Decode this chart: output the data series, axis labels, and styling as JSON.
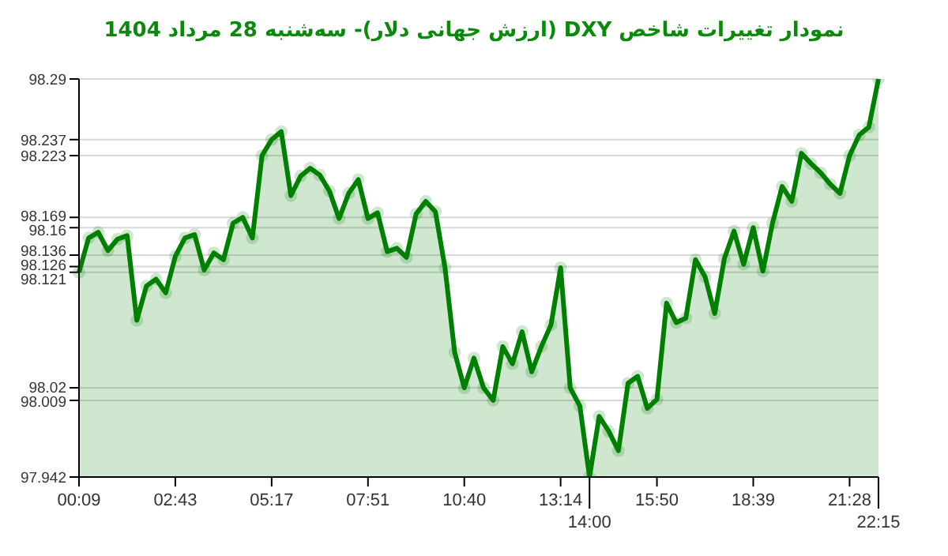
{
  "chart_data": {
    "type": "area",
    "title": "نمودار تغییرات شاخص DXY (ارزش جهانی دلار)- سه‌شنبه   28 مرداد 1404",
    "categories": [
      "00:09",
      null,
      null,
      null,
      null,
      null,
      null,
      null,
      null,
      null,
      "02:43",
      null,
      null,
      null,
      null,
      null,
      null,
      null,
      null,
      null,
      "05:17",
      null,
      null,
      null,
      null,
      null,
      null,
      null,
      null,
      null,
      "07:51",
      null,
      null,
      null,
      null,
      null,
      null,
      null,
      null,
      null,
      "10:40",
      null,
      null,
      null,
      null,
      null,
      null,
      null,
      null,
      null,
      "13:14",
      null,
      null,
      "14:00",
      null,
      null,
      null,
      null,
      null,
      null,
      "15:50",
      null,
      null,
      null,
      null,
      null,
      null,
      null,
      null,
      null,
      "18:39",
      null,
      null,
      null,
      null,
      null,
      null,
      null,
      null,
      null,
      "21:28",
      null,
      null,
      "22:15"
    ],
    "series": [
      {
        "color": "#008000",
        "values": [
          98.121,
          98.151,
          98.156,
          98.14,
          98.15,
          98.153,
          98.079,
          98.109,
          98.115,
          98.103,
          98.135,
          98.151,
          98.154,
          98.123,
          98.138,
          98.132,
          98.164,
          98.169,
          98.151,
          98.223,
          98.237,
          98.244,
          98.188,
          98.205,
          98.212,
          98.206,
          98.192,
          98.168,
          98.19,
          98.202,
          98.168,
          98.173,
          98.139,
          98.142,
          98.134,
          98.172,
          98.183,
          98.174,
          98.125,
          98.051,
          98.02,
          98.046,
          98.02,
          98.009,
          98.056,
          98.041,
          98.069,
          98.034,
          98.056,
          98.075,
          98.125,
          98.02,
          98.004,
          97.942,
          97.995,
          97.982,
          97.965,
          98.024,
          98.03,
          98.002,
          98.01,
          98.094,
          98.077,
          98.081,
          98.132,
          98.117,
          98.085,
          98.133,
          98.157,
          98.128,
          98.16,
          98.122,
          98.164,
          98.196,
          98.183,
          98.225,
          98.216,
          98.208,
          98.198,
          98.19,
          98.223,
          98.241,
          98.248,
          98.29
        ]
      }
    ],
    "ylim": [
      97.942,
      98.29
    ],
    "yticks": [
      97.942,
      98.009,
      98.02,
      98.121,
      98.126,
      98.136,
      98.16,
      98.169,
      98.223,
      98.237,
      98.29
    ],
    "grid": "y",
    "legend": false,
    "marker": "circle",
    "line_style": "solid"
  }
}
